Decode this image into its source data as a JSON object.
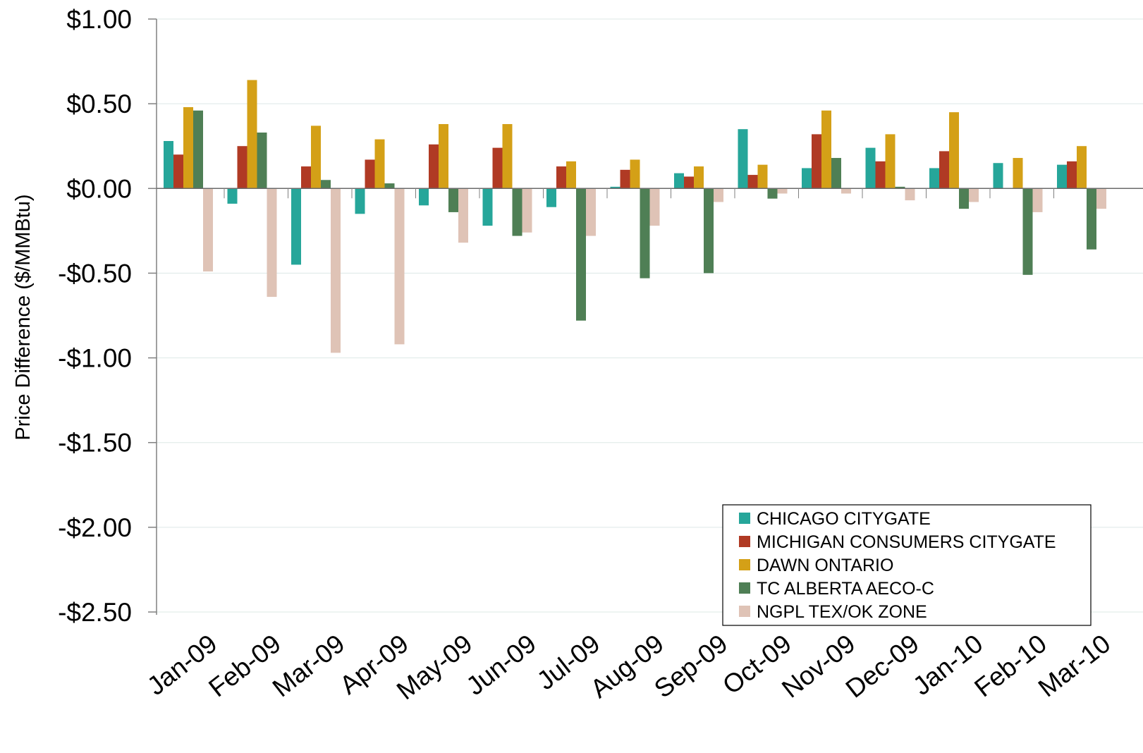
{
  "chart_data": {
    "type": "bar",
    "title": "",
    "xlabel": "",
    "ylabel": "Price Difference  ($/MMBtu)",
    "ylim": [
      -2.5,
      1.0
    ],
    "y_ticks": [
      1.0,
      0.5,
      0.0,
      -0.5,
      -1.0,
      -1.5,
      -2.0,
      -2.5
    ],
    "y_tick_labels": [
      "$1.00",
      "$0.50",
      "$0.00",
      "-$0.50",
      "-$1.00",
      "-$1.50",
      "-$2.00",
      "-$2.50"
    ],
    "grid": true,
    "legend_position": "bottom-right",
    "categories": [
      "Jan-09",
      "Feb-09",
      "Mar-09",
      "Apr-09",
      "May-09",
      "Jun-09",
      "Jul-09",
      "Aug-09",
      "Sep-09",
      "Oct-09",
      "Nov-09",
      "Dec-09",
      "Jan-10",
      "Feb-10",
      "Mar-10"
    ],
    "series": [
      {
        "name": "CHICAGO CITYGATE",
        "color": "#26a69a",
        "values": [
          0.28,
          -0.09,
          -0.45,
          -0.15,
          -0.1,
          -0.22,
          -0.11,
          0.01,
          0.09,
          0.35,
          0.12,
          0.24,
          0.12,
          0.15,
          0.14
        ]
      },
      {
        "name": "MICHIGAN CONSUMERS CITYGATE",
        "color": "#b03a24",
        "values": [
          0.2,
          0.25,
          0.13,
          0.17,
          0.26,
          0.24,
          0.13,
          0.11,
          0.07,
          0.08,
          0.32,
          0.16,
          0.22,
          0.0,
          0.16
        ]
      },
      {
        "name": "DAWN ONTARIO",
        "color": "#d4a017",
        "values": [
          0.48,
          0.64,
          0.37,
          0.29,
          0.38,
          0.38,
          0.16,
          0.17,
          0.13,
          0.14,
          0.46,
          0.32,
          0.45,
          0.18,
          0.25
        ]
      },
      {
        "name": "TC ALBERTA AECO-C",
        "color": "#4f7f55",
        "values": [
          0.46,
          0.33,
          0.05,
          0.03,
          -0.14,
          -0.28,
          -0.78,
          -0.53,
          -0.5,
          -0.06,
          0.18,
          0.01,
          -0.12,
          -0.51,
          -0.36
        ]
      },
      {
        "name": "NGPL TEX/OK ZONE",
        "color": "#dfc3b6",
        "values": [
          -0.49,
          -0.64,
          -0.97,
          -0.92,
          -0.32,
          -0.26,
          -0.28,
          -0.22,
          -0.08,
          -0.03,
          -0.03,
          -0.07,
          -0.08,
          -0.14,
          -0.12
        ]
      }
    ]
  }
}
